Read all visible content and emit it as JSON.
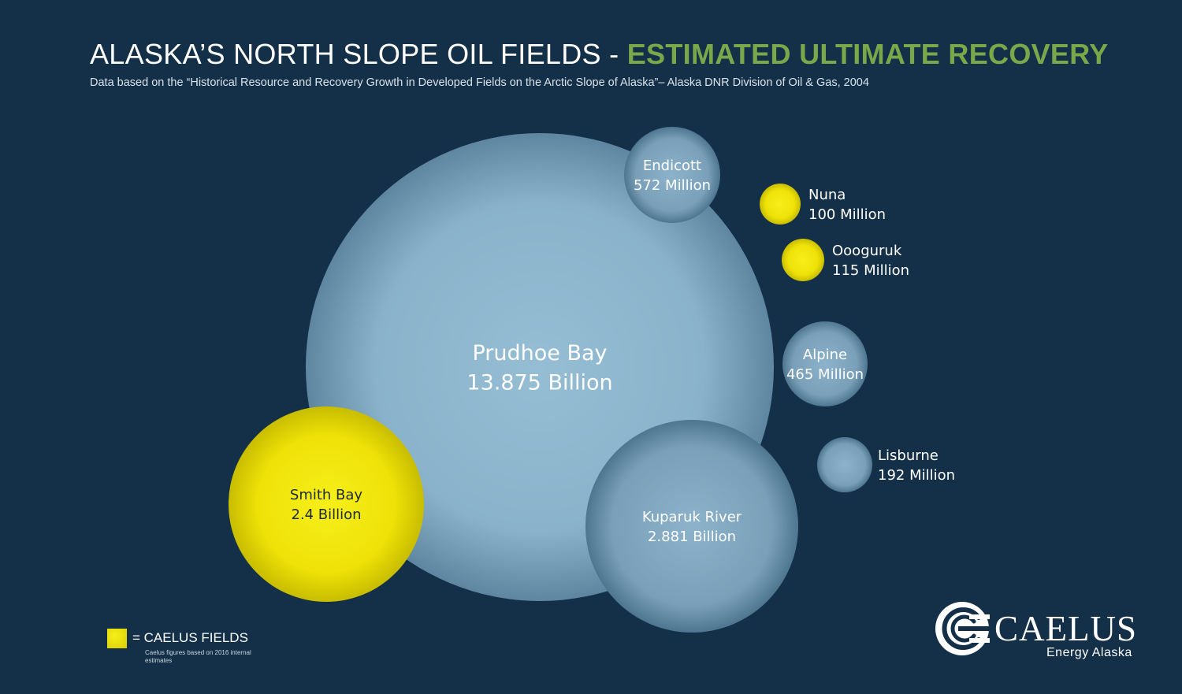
{
  "header": {
    "title_main": "ALASKA’S NORTH SLOPE OIL FIELDS - ",
    "title_accent": "ESTIMATED ULTIMATE RECOVERY",
    "subtitle": "Data based on the “Historical Resource and Recovery Growth in Developed Fields on the Arctic Slope of Alaska”– Alaska DNR Division of Oil & Gas, 2004"
  },
  "colors": {
    "background": "#133048",
    "accent": "#79a84a",
    "field_blue": "#8fb7cf",
    "caelus_yellow": "#f2e80c"
  },
  "chart_data": {
    "type": "bubble",
    "unit": "barrels",
    "fields": [
      {
        "name": "Prudhoe Bay",
        "label": "13.875 Billion",
        "value": 13875,
        "caelus": false
      },
      {
        "name": "Smith Bay",
        "label": "2.4 Billion",
        "value": 2400,
        "caelus": true
      },
      {
        "name": "Kuparuk River",
        "label": "2.881 Billion",
        "value": 2881,
        "caelus": false
      },
      {
        "name": "Endicott",
        "label": "572 Million",
        "value": 572,
        "caelus": false
      },
      {
        "name": "Nuna",
        "label": "100 Million",
        "value": 100,
        "caelus": true
      },
      {
        "name": "Oooguruk",
        "label": "115 Million",
        "value": 115,
        "caelus": true
      },
      {
        "name": "Alpine",
        "label": "465 Million",
        "value": 465,
        "caelus": false
      },
      {
        "name": "Lisburne",
        "label": "192 Million",
        "value": 192,
        "caelus": false
      }
    ]
  },
  "legend": {
    "label": "= CAELUS FIELDS",
    "note": "Caelus figures based on 2016 internal estimates"
  },
  "logo": {
    "name": "CAELUS",
    "tagline": "Energy Alaska"
  }
}
